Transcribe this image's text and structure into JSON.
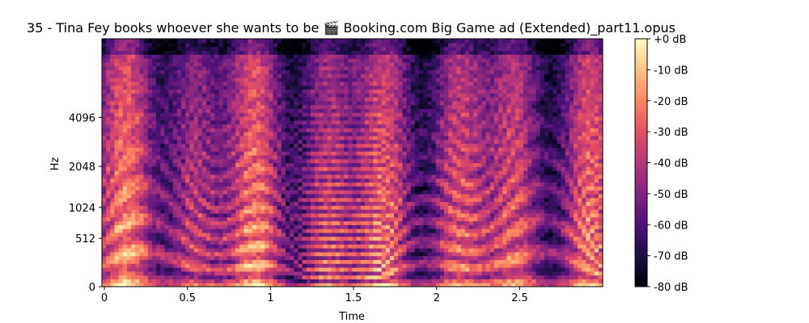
{
  "chart_data": {
    "type": "heatmap",
    "title": "35 - Tina Fey books whoever she wants to be 🎬 Booking.com Big Game ad (Extended)_part11.opus",
    "xlabel": "Time",
    "ylabel": "Hz",
    "x_ticks": [
      {
        "value": 0,
        "label": "0"
      },
      {
        "value": 0.5,
        "label": "0.5"
      },
      {
        "value": 1,
        "label": "1"
      },
      {
        "value": 1.5,
        "label": "1.5"
      },
      {
        "value": 2,
        "label": "2"
      },
      {
        "value": 2.5,
        "label": "2.5"
      }
    ],
    "y_ticks": [
      {
        "value": 0,
        "label": "0"
      },
      {
        "value": 512,
        "label": "512"
      },
      {
        "value": 1024,
        "label": "1024"
      },
      {
        "value": 2048,
        "label": "2048"
      },
      {
        "value": 4096,
        "label": "4096"
      }
    ],
    "xlim": [
      0,
      3.0
    ],
    "y_scale": "mel",
    "ylim": [
      0,
      11025
    ],
    "colormap": "magma",
    "colorbar": {
      "range": [
        -80,
        0
      ],
      "unit": "dB",
      "ticks": [
        {
          "value": 0,
          "label": "+0 dB"
        },
        {
          "value": -10,
          "label": "-10 dB"
        },
        {
          "value": -20,
          "label": "-20 dB"
        },
        {
          "value": -30,
          "label": "-30 dB"
        },
        {
          "value": -40,
          "label": "-40 dB"
        },
        {
          "value": -50,
          "label": "-50 dB"
        },
        {
          "value": -60,
          "label": "-60 dB"
        },
        {
          "value": -70,
          "label": "-70 dB"
        },
        {
          "value": -80,
          "label": "-80 dB"
        }
      ]
    },
    "grid": false
  }
}
